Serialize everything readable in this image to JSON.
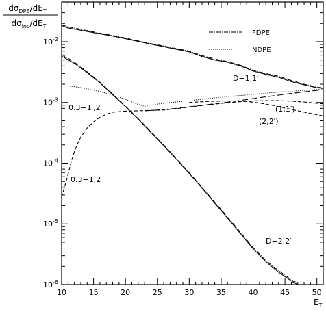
{
  "chart_data": {
    "type": "line",
    "x_axis": {
      "label": "E",
      "label_sub": "T",
      "range": [
        10,
        51
      ],
      "ticks": [
        10,
        15,
        20,
        25,
        30,
        35,
        40,
        45,
        50
      ],
      "tick_labels": [
        "10",
        "15",
        "20",
        "25",
        "30",
        "35",
        "40",
        "45",
        "50"
      ]
    },
    "y_axis": {
      "scale": "log",
      "range": [
        1e-06,
        0.045
      ],
      "label_numerator": "dσDPE/dET",
      "label_denominator": "dσinc/dET",
      "decade_ticks": [
        1e-06,
        1e-05,
        0.0001,
        0.001,
        0.01
      ],
      "tick_labels": [
        {
          "base": "10",
          "exp": "-6"
        },
        {
          "base": "10",
          "exp": "-5"
        },
        {
          "base": "10",
          "exp": "-4"
        },
        {
          "base": "10",
          "exp": "-3"
        },
        {
          "base": "10",
          "exp": "-2"
        }
      ]
    },
    "legend": {
      "placement": "top-right",
      "entries": [
        {
          "label": "FDPE",
          "style": "dash-dot"
        },
        {
          "label": "NDPE",
          "style": "dotted"
        }
      ]
    },
    "annotations": {
      "d11": "D−1,1′",
      "d22": "D−2,2′",
      "ndpe_a": "0.3−1′,2′",
      "ndpe_b": "0.3−1,2",
      "c11": "(1,1′)",
      "c22": "(2,2′)"
    },
    "series": [
      {
        "id": "d11_full",
        "style": "solid",
        "x": [
          10,
          11,
          12,
          14,
          16,
          18,
          20,
          22,
          24,
          26,
          28,
          30,
          32,
          34,
          36,
          38,
          40,
          42,
          44,
          46,
          48,
          50,
          51
        ],
        "y": [
          0.0185,
          0.0168,
          0.0162,
          0.0147,
          0.0135,
          0.0124,
          0.0112,
          0.0101,
          0.0091,
          0.0083,
          0.0075,
          0.0068,
          0.0057,
          0.005,
          0.0046,
          0.004,
          0.0033,
          0.0029,
          0.0026,
          0.0022,
          0.00195,
          0.00175,
          0.0017
        ]
      },
      {
        "id": "d11_fdpe",
        "style": "dash-dot",
        "x": [
          10,
          11,
          12,
          14,
          16,
          18,
          20,
          22,
          24,
          26,
          28,
          30,
          32,
          34,
          36,
          38,
          40,
          42,
          44,
          46,
          48,
          50,
          51
        ],
        "y": [
          0.019,
          0.0175,
          0.0168,
          0.0152,
          0.0138,
          0.0127,
          0.0115,
          0.0103,
          0.0093,
          0.0085,
          0.0077,
          0.007,
          0.0059,
          0.0052,
          0.0047,
          0.0041,
          0.0034,
          0.003,
          0.0027,
          0.0023,
          0.002,
          0.0018,
          0.00172
        ]
      },
      {
        "id": "d22_full",
        "style": "solid",
        "x": [
          10,
          12,
          14,
          16,
          18,
          20,
          22,
          24,
          26,
          28,
          30,
          32,
          34,
          36,
          38,
          40,
          42,
          44,
          46,
          47
        ],
        "y": [
          0.0058,
          0.0044,
          0.0031,
          0.0021,
          0.00135,
          0.00085,
          0.00053,
          0.00032,
          0.000195,
          0.000115,
          6.8e-05,
          3.9e-05,
          2.2e-05,
          1.25e-05,
          7e-06,
          3.9e-06,
          2.4e-06,
          1.6e-06,
          1.15e-06,
          1e-06
        ]
      },
      {
        "id": "d22_fdpe",
        "style": "dash-dot",
        "x": [
          10,
          12,
          14,
          16,
          18,
          20,
          22,
          24,
          26,
          28,
          30,
          32,
          34,
          36,
          38,
          40,
          42,
          44,
          46,
          47
        ],
        "y": [
          0.0062,
          0.0046,
          0.0032,
          0.00215,
          0.00138,
          0.00087,
          0.00054,
          0.00033,
          0.0002,
          0.000118,
          7e-05,
          4e-05,
          2.28e-05,
          1.3e-05,
          7.3e-06,
          4.1e-06,
          2.5e-06,
          1.7e-06,
          1.2e-06,
          1.05e-06
        ]
      },
      {
        "id": "ndpe_1p2p",
        "style": "dotted",
        "x": [
          10,
          12,
          14,
          16,
          18,
          20,
          22,
          23,
          24,
          26,
          28,
          30,
          32,
          34,
          36,
          38,
          40,
          42,
          44,
          46,
          48,
          50,
          51
        ],
        "y": [
          0.00195,
          0.00182,
          0.00168,
          0.00151,
          0.00132,
          0.00113,
          0.00093,
          0.00086,
          0.00091,
          0.00097,
          0.00102,
          0.00107,
          0.00113,
          0.00119,
          0.00124,
          0.0013,
          0.00136,
          0.00142,
          0.00148,
          0.00153,
          0.00158,
          0.00163,
          0.00165
        ]
      },
      {
        "id": "ndpe_12",
        "style": "dashed",
        "x": [
          10,
          10.5,
          11,
          11.5,
          12,
          12.5,
          13,
          14,
          15,
          16,
          17,
          18,
          20,
          22,
          24,
          26,
          28,
          30,
          32,
          34,
          36,
          38,
          40,
          42,
          44,
          46,
          48,
          50,
          51
        ],
        "y": [
          2.8e-05,
          4.2e-05,
          6.5e-05,
          0.000105,
          0.000155,
          0.00021,
          0.00027,
          0.00038,
          0.00048,
          0.00057,
          0.00064,
          0.00069,
          0.00072,
          0.00073,
          0.00074,
          0.00075,
          0.00079,
          0.00084,
          0.00089,
          0.00094,
          0.00099,
          0.00103,
          0.00106,
          0.00107,
          0.00107,
          0.00105,
          0.00102,
          0.00097,
          0.00095
        ]
      },
      {
        "id": "curve_11p",
        "style": "long-dash",
        "x": [
          23,
          25,
          28,
          30,
          32,
          35,
          38,
          41,
          44,
          47,
          50,
          51
        ],
        "y": [
          0.00073,
          0.00075,
          0.0008,
          0.00085,
          0.0009,
          0.00098,
          0.00108,
          0.0012,
          0.00132,
          0.00145,
          0.00158,
          0.00162
        ]
      },
      {
        "id": "curve_22p",
        "style": "dashed",
        "x": [
          30,
          33,
          36,
          39,
          41,
          43,
          45,
          47,
          49,
          51
        ],
        "y": [
          0.001,
          0.00104,
          0.00106,
          0.00104,
          0.00098,
          0.0009,
          0.00081,
          0.00073,
          0.00066,
          0.0006
        ]
      }
    ]
  }
}
